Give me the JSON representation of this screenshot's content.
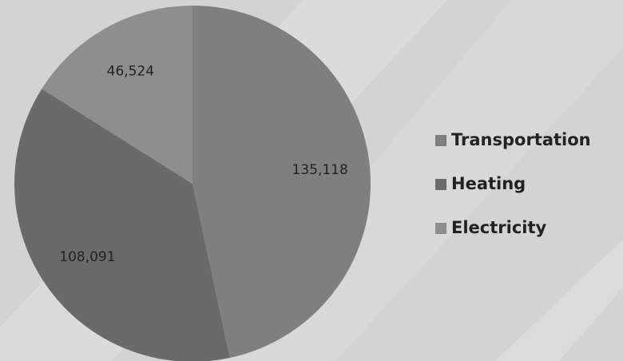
{
  "chart_data": {
    "type": "pie",
    "categories": [
      "Transportation",
      "Heating",
      "Electricity"
    ],
    "values": [
      135118,
      108091,
      46524
    ],
    "value_labels": [
      "135,118",
      "108,091",
      "46,524"
    ],
    "colors": [
      "#7f7f7f",
      "#6a6a6a",
      "#8e8e8e"
    ],
    "legend": "right"
  }
}
